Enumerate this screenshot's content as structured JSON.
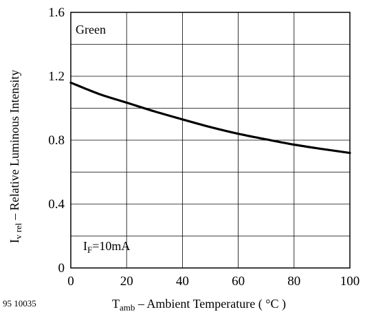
{
  "chart_data": {
    "type": "line",
    "series": [
      {
        "x": [
          0,
          10,
          20,
          30,
          40,
          50,
          60,
          70,
          80,
          90,
          100
        ],
        "y": [
          1.16,
          1.09,
          1.035,
          0.98,
          0.93,
          0.882,
          0.84,
          0.805,
          0.772,
          0.745,
          0.72
        ]
      }
    ],
    "xlim": [
      0,
      100
    ],
    "ylim": [
      0,
      1.6
    ],
    "x_ticks": [
      0,
      20,
      40,
      60,
      80,
      100
    ],
    "y_ticks": [
      0,
      0.4,
      0.8,
      1.2,
      1.6
    ],
    "x_tick_labels": [
      "0",
      "20",
      "40",
      "60",
      "80",
      "100"
    ],
    "y_tick_labels": [
      "0",
      "0.4",
      "0.8",
      "1.2",
      "1.6"
    ],
    "x_grid": [
      0,
      20,
      40,
      60,
      80,
      100
    ],
    "y_grid": [
      0,
      0.2,
      0.4,
      0.6,
      0.8,
      1.0,
      1.2,
      1.4,
      1.6
    ],
    "grid": true,
    "xlabel": {
      "main": "T",
      "sub": "amb",
      "rest": " – Ambient Temperature ( °C )"
    },
    "ylabel": {
      "main": "I",
      "sub": "v rel",
      "rest": "  – Relative Luminous Intensity"
    },
    "annotations": {
      "legend_text": "Green",
      "condition": {
        "main": "I",
        "sub": "F",
        "rest": "=10mA"
      }
    },
    "figure_id": "95 10035"
  }
}
